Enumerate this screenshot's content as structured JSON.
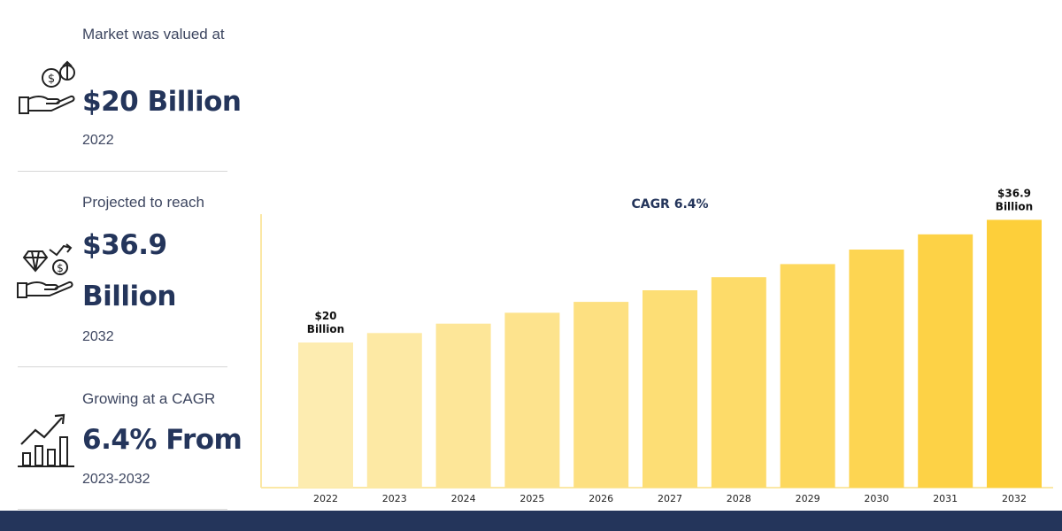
{
  "stats": [
    {
      "caption": "Market was valued at",
      "value": "$20 Billion",
      "sub": "2022",
      "icon": "money-hand-icon"
    },
    {
      "caption": "Projected to reach",
      "value": "$36.9 Billion",
      "sub": "2032",
      "icon": "diamond-hand-icon"
    },
    {
      "caption": "Growing at a CAGR",
      "value": "6.4% From",
      "sub": "2023-2032",
      "icon": "growth-chart-icon"
    }
  ],
  "colors": {
    "navy": "#24355b",
    "bar_light": "#fdecb0",
    "bar_dark": "#fdcf3a",
    "axis": "#fbe8a6"
  },
  "chart_data": {
    "type": "bar",
    "title": "CAGR 6.4%",
    "categories": [
      "2022",
      "2023",
      "2024",
      "2025",
      "2026",
      "2027",
      "2028",
      "2029",
      "2030",
      "2031",
      "2032"
    ],
    "values": [
      20,
      21.3,
      22.6,
      24.1,
      25.6,
      27.2,
      29.0,
      30.8,
      32.8,
      34.9,
      36.9
    ],
    "ylim": [
      0,
      40
    ],
    "xlabel": "",
    "ylabel": "",
    "annotations": [
      {
        "index": 0,
        "lines": [
          "$20",
          "Billion"
        ]
      },
      {
        "index": 10,
        "lines": [
          "$36.9",
          "Billion"
        ]
      }
    ]
  }
}
